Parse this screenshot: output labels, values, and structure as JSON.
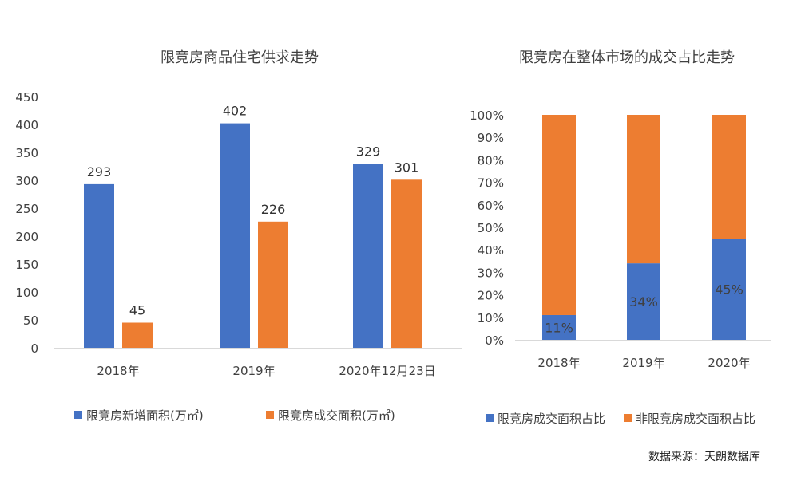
{
  "colors": {
    "blue": "#4472C4",
    "orange": "#ED7D31",
    "axis": "#D9D9D9",
    "text": "#404040",
    "title": "#404040"
  },
  "source": "数据来源：天朗数据库",
  "chart_data": [
    {
      "type": "bar",
      "title": "限竞房商品住宅供求走势",
      "categories": [
        "2018年",
        "2019年",
        "2020年12月23日"
      ],
      "ylim": [
        0,
        450
      ],
      "yticks": [
        "0",
        "50",
        "100",
        "150",
        "200",
        "250",
        "300",
        "350",
        "400",
        "450"
      ],
      "grid": false,
      "legend_position": "bottom",
      "series": [
        {
          "name": "限竞房新增面积(万㎡)",
          "color": "#4472C4",
          "values": [
            293,
            402,
            329
          ],
          "labels": [
            "293",
            "402",
            "329"
          ]
        },
        {
          "name": "限竞房成交面积(万㎡)",
          "color": "#ED7D31",
          "values": [
            45,
            226,
            301
          ],
          "labels": [
            "45",
            "226",
            "301"
          ]
        }
      ]
    },
    {
      "type": "stacked-bar-100",
      "title": "限竞房在整体市场的成交占比走势",
      "categories": [
        "2018年",
        "2019年",
        "2020年"
      ],
      "ylim": [
        0,
        100
      ],
      "yticks": [
        "0%",
        "10%",
        "20%",
        "30%",
        "40%",
        "50%",
        "60%",
        "70%",
        "80%",
        "90%",
        "100%"
      ],
      "grid": false,
      "legend_position": "bottom",
      "series": [
        {
          "name": "限竞房成交面积占比",
          "color": "#4472C4",
          "values": [
            11,
            34,
            45
          ],
          "labels": [
            "11%",
            "34%",
            "45%"
          ]
        },
        {
          "name": "非限竞房成交面积占比",
          "color": "#ED7D31",
          "values": [
            89,
            66,
            55
          ]
        }
      ]
    }
  ]
}
